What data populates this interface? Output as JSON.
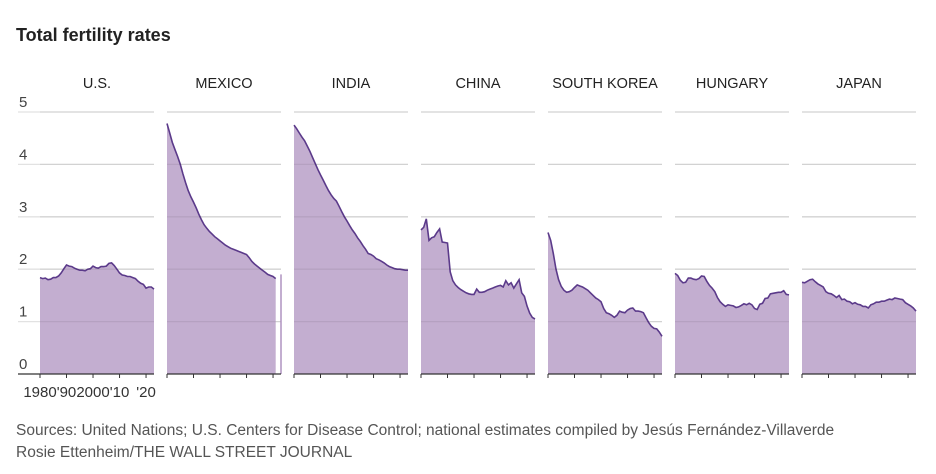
{
  "chart_data": {
    "type": "area",
    "title": "Total fertility rates",
    "ylim": [
      0,
      5
    ],
    "yticks": [
      "0",
      "1",
      "2",
      "3",
      "4",
      "5"
    ],
    "x_start": 1980,
    "x_end": 2023,
    "xtick_labels": [
      "1980",
      "'90",
      "2000",
      "'10",
      "'20"
    ],
    "grid": true,
    "colors": {
      "fill": "#c3aed0",
      "line": "#5b3a8a",
      "grid": "#e2e2e2"
    },
    "series": [
      {
        "name": "U.S.",
        "values": [
          1.84,
          1.82,
          1.83,
          1.8,
          1.81,
          1.84,
          1.84,
          1.87,
          1.93,
          2.01,
          2.08,
          2.06,
          2.05,
          2.02,
          2.0,
          1.98,
          1.98,
          1.97,
          2.0,
          2.01,
          2.06,
          2.03,
          2.02,
          2.05,
          2.05,
          2.06,
          2.11,
          2.12,
          2.07,
          2.0,
          1.93,
          1.89,
          1.88,
          1.86,
          1.86,
          1.84,
          1.82,
          1.77,
          1.73,
          1.71,
          1.64,
          1.66,
          1.66,
          1.62
        ]
      },
      {
        "name": "MEXICO",
        "values": [
          4.78,
          4.6,
          4.42,
          4.28,
          4.15,
          4.0,
          3.82,
          3.65,
          3.5,
          3.38,
          3.28,
          3.17,
          3.05,
          2.94,
          2.85,
          2.78,
          2.72,
          2.67,
          2.62,
          2.58,
          2.54,
          2.5,
          2.46,
          2.43,
          2.4,
          2.38,
          2.36,
          2.34,
          2.32,
          2.3,
          2.28,
          2.22,
          2.15,
          2.1,
          2.06,
          2.02,
          1.98,
          1.94,
          1.9,
          1.88,
          1.86,
          1.82,
          null,
          1.9
        ]
      },
      {
        "name": "INDIA",
        "values": [
          4.75,
          4.68,
          4.6,
          4.52,
          4.45,
          4.35,
          4.25,
          4.13,
          4.02,
          3.9,
          3.8,
          3.7,
          3.6,
          3.5,
          3.42,
          3.35,
          3.3,
          3.2,
          3.1,
          3.0,
          2.92,
          2.83,
          2.75,
          2.68,
          2.6,
          2.53,
          2.45,
          2.38,
          2.3,
          2.28,
          2.25,
          2.2,
          2.18,
          2.15,
          2.12,
          2.08,
          2.05,
          2.03,
          2.01,
          2.0,
          2.0,
          1.99,
          1.98,
          1.98
        ]
      },
      {
        "name": "CHINA",
        "values": [
          2.75,
          2.8,
          2.96,
          2.55,
          2.6,
          2.62,
          2.7,
          2.77,
          2.52,
          2.51,
          2.5,
          1.95,
          1.78,
          1.7,
          1.65,
          1.61,
          1.58,
          1.55,
          1.53,
          1.52,
          1.52,
          1.62,
          1.56,
          1.56,
          1.57,
          1.6,
          1.62,
          1.64,
          1.66,
          1.68,
          1.69,
          1.66,
          1.78,
          1.7,
          1.74,
          1.64,
          1.72,
          1.8,
          1.55,
          1.48,
          1.3,
          1.16,
          1.08,
          1.05
        ]
      },
      {
        "name": "SOUTH KOREA",
        "values": [
          2.7,
          2.55,
          2.3,
          2.0,
          1.8,
          1.67,
          1.6,
          1.56,
          1.57,
          1.6,
          1.65,
          1.7,
          1.68,
          1.66,
          1.63,
          1.6,
          1.55,
          1.5,
          1.45,
          1.42,
          1.38,
          1.25,
          1.17,
          1.15,
          1.12,
          1.08,
          1.12,
          1.2,
          1.18,
          1.17,
          1.22,
          1.25,
          1.26,
          1.2,
          1.2,
          1.19,
          1.17,
          1.07,
          0.98,
          0.91,
          0.87,
          0.86,
          0.8,
          0.72
        ]
      },
      {
        "name": "HUNGARY",
        "values": [
          1.92,
          1.88,
          1.79,
          1.74,
          1.75,
          1.83,
          1.83,
          1.81,
          1.8,
          1.82,
          1.87,
          1.86,
          1.77,
          1.69,
          1.64,
          1.57,
          1.46,
          1.38,
          1.33,
          1.29,
          1.32,
          1.31,
          1.3,
          1.27,
          1.28,
          1.31,
          1.34,
          1.32,
          1.35,
          1.32,
          1.25,
          1.23,
          1.33,
          1.35,
          1.44,
          1.45,
          1.53,
          1.54,
          1.55,
          1.56,
          1.56,
          1.59,
          1.52,
          1.51
        ]
      },
      {
        "name": "JAPAN",
        "values": [
          1.75,
          1.74,
          1.77,
          1.8,
          1.81,
          1.76,
          1.72,
          1.69,
          1.66,
          1.57,
          1.54,
          1.53,
          1.5,
          1.46,
          1.5,
          1.42,
          1.43,
          1.39,
          1.38,
          1.34,
          1.36,
          1.33,
          1.32,
          1.29,
          1.29,
          1.26,
          1.32,
          1.34,
          1.37,
          1.37,
          1.39,
          1.39,
          1.41,
          1.43,
          1.42,
          1.45,
          1.44,
          1.43,
          1.42,
          1.36,
          1.33,
          1.3,
          1.26,
          1.2
        ]
      }
    ]
  },
  "sources": "Sources: United Nations; U.S. Centers for Disease Control; national estimates compiled by Jesús Fernández-Villaverde",
  "credit": "Rosie Ettenheim/THE WALL STREET JOURNAL"
}
